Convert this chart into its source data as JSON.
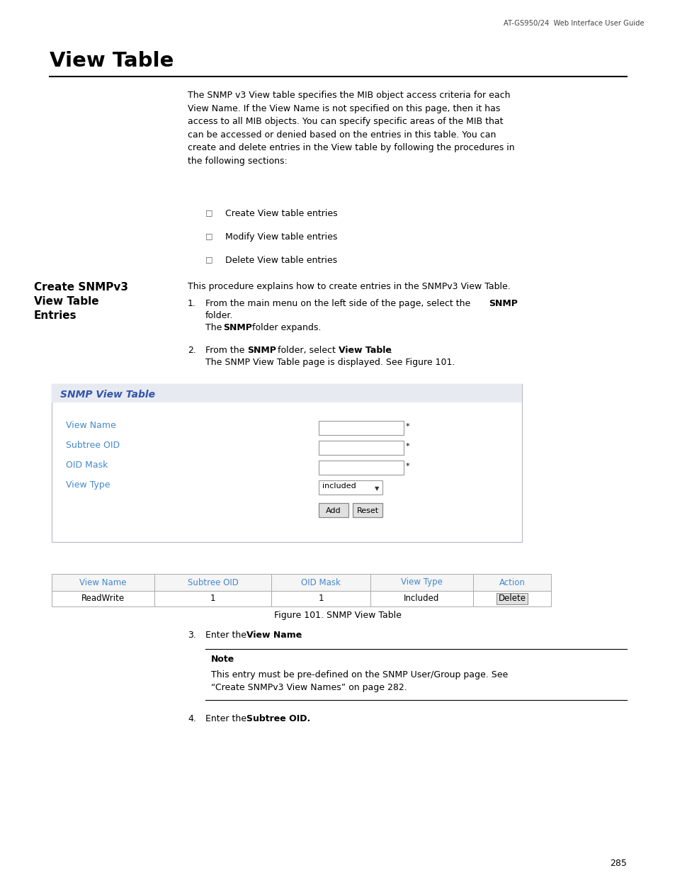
{
  "bg_color": "#ffffff",
  "header_text": "AT-GS950/24  Web Interface User Guide",
  "section_title": "View Table",
  "body_text_intro": "The SNMP v3 View table specifies the MIB object access criteria for each\nView Name. If the View Name is not specified on this page, then it has\naccess to all MIB objects. You can specify specific areas of the MIB that\ncan be accessed or denied based on the entries in this table. You can\ncreate and delete entries in the View table by following the procedures in\nthe following sections:",
  "bullet_items": [
    "Create View table entries",
    "Modify View table entries",
    "Delete View table entries"
  ],
  "left_label_line1": "Create SNMPv3",
  "left_label_line2": "View Table",
  "left_label_line3": "Entries",
  "procedure_intro": "This procedure explains how to create entries in the SNMPv3 View Table.",
  "snmp_panel_title": "SNMP View Table",
  "snmp_panel_bg": "#e8eaf2",
  "snmp_panel_title_color": "#3355aa",
  "form_labels": [
    "View Name",
    "Subtree OID",
    "OID Mask",
    "View Type"
  ],
  "form_label_color": "#4488cc",
  "table_headers": [
    "View Name",
    "Subtree OID",
    "OID Mask",
    "View Type",
    "Action"
  ],
  "table_header_color": "#4488cc",
  "table_row": [
    "ReadWrite",
    "1",
    "1",
    "Included",
    "Delete"
  ],
  "figure_caption": "Figure 101. SNMP View Table",
  "note_title": "Note",
  "note_body1": "This entry must be pre-defined on the SNMP User/Group page. See",
  "note_body2": "“Create SNMPv3 View Names” on page 282.",
  "page_number": "285"
}
